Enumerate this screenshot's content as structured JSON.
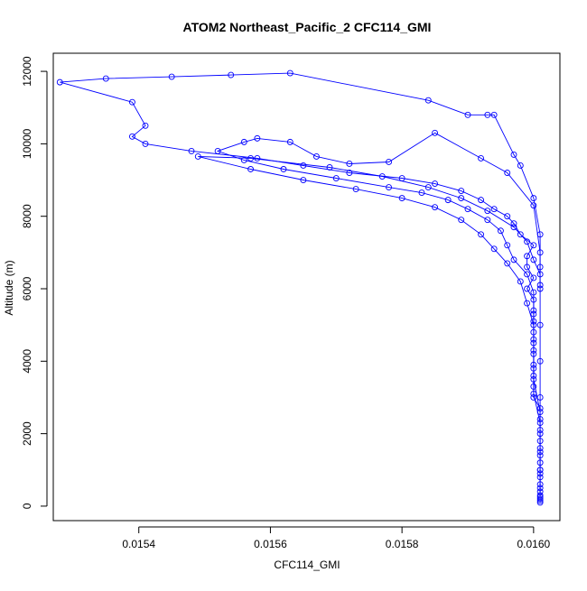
{
  "chart_data": {
    "type": "scatter",
    "title": "ATOM2 Northeast_Pacific_2 CFC114_GMI",
    "xlabel": "CFC114_GMI",
    "ylabel": "Altitude (m)",
    "xlim": [
      0.01527,
      0.01604
    ],
    "ylim": [
      -400,
      12500
    ],
    "x_ticks": [
      0.0154,
      0.0156,
      0.0158,
      0.016
    ],
    "x_tick_labels": [
      "0.0154",
      "0.0156",
      "0.0158",
      "0.0160"
    ],
    "y_ticks": [
      0,
      2000,
      4000,
      6000,
      8000,
      10000,
      12000
    ],
    "y_tick_labels": [
      "0",
      "2000",
      "4000",
      "6000",
      "8000",
      "10000",
      "12000"
    ],
    "grid": false,
    "legend": "none",
    "marker": "open-circle",
    "color": "#0000ff",
    "series": [
      {
        "values": [
          [
            0.01601,
            100
          ],
          [
            0.01601,
            200
          ],
          [
            0.01601,
            400
          ],
          [
            0.01601,
            600
          ],
          [
            0.01601,
            900
          ],
          [
            0.01601,
            1200
          ],
          [
            0.01601,
            1500
          ],
          [
            0.01601,
            1800
          ],
          [
            0.01601,
            2100
          ],
          [
            0.01601,
            2400
          ],
          [
            0.01601,
            2700
          ],
          [
            0.016,
            3000
          ],
          [
            0.016,
            3300
          ],
          [
            0.016,
            3600
          ],
          [
            0.016,
            3900
          ],
          [
            0.016,
            4200
          ],
          [
            0.016,
            4500
          ],
          [
            0.016,
            4800
          ],
          [
            0.016,
            5100
          ],
          [
            0.016,
            5400
          ],
          [
            0.016,
            5700
          ],
          [
            0.01599,
            6000
          ],
          [
            0.016,
            6300
          ],
          [
            0.01599,
            6600
          ],
          [
            0.01599,
            6900
          ],
          [
            0.016,
            7200
          ],
          [
            0.01598,
            7500
          ],
          [
            0.01597,
            7800
          ],
          [
            0.01596,
            8000
          ],
          [
            0.01594,
            8200
          ],
          [
            0.01592,
            8450
          ],
          [
            0.01589,
            8700
          ],
          [
            0.01585,
            8900
          ],
          [
            0.0158,
            9050
          ],
          [
            0.01572,
            9200
          ],
          [
            0.01565,
            9400
          ],
          [
            0.01558,
            9600
          ],
          [
            0.01548,
            9800
          ],
          [
            0.01541,
            10000
          ],
          [
            0.01539,
            10200
          ],
          [
            0.01541,
            10500
          ],
          [
            0.01539,
            11150
          ],
          [
            0.01528,
            11700
          ],
          [
            0.01535,
            11800
          ],
          [
            0.01545,
            11850
          ],
          [
            0.01554,
            11900
          ],
          [
            0.01563,
            11950
          ],
          [
            0.01584,
            11200
          ],
          [
            0.0159,
            10800
          ],
          [
            0.01593,
            10800
          ],
          [
            0.01594,
            10800
          ],
          [
            0.01597,
            9700
          ],
          [
            0.01598,
            9400
          ],
          [
            0.016,
            8500
          ],
          [
            0.01601,
            7500
          ],
          [
            0.01601,
            6600
          ],
          [
            0.01601,
            6000
          ],
          [
            0.01601,
            5000
          ],
          [
            0.01601,
            4000
          ],
          [
            0.01601,
            3000
          ],
          [
            0.01601,
            2000
          ],
          [
            0.01601,
            1000
          ],
          [
            0.01601,
            300
          ]
        ]
      },
      {
        "values": [
          [
            0.01601,
            150
          ],
          [
            0.01601,
            500
          ],
          [
            0.01601,
            1000
          ],
          [
            0.01601,
            1600
          ],
          [
            0.01601,
            2300
          ],
          [
            0.016,
            3100
          ],
          [
            0.016,
            3800
          ],
          [
            0.016,
            4600
          ],
          [
            0.016,
            5300
          ],
          [
            0.016,
            5900
          ],
          [
            0.01599,
            6400
          ],
          [
            0.01597,
            6800
          ],
          [
            0.01596,
            7200
          ],
          [
            0.01595,
            7600
          ],
          [
            0.01593,
            7900
          ],
          [
            0.0159,
            8200
          ],
          [
            0.01587,
            8450
          ],
          [
            0.01583,
            8650
          ],
          [
            0.01578,
            8800
          ],
          [
            0.0157,
            9050
          ],
          [
            0.01562,
            9300
          ],
          [
            0.01556,
            9550
          ],
          [
            0.01552,
            9800
          ],
          [
            0.01556,
            10050
          ],
          [
            0.01558,
            10150
          ],
          [
            0.01563,
            10050
          ],
          [
            0.01567,
            9650
          ],
          [
            0.01572,
            9450
          ],
          [
            0.01578,
            9500
          ],
          [
            0.01585,
            10300
          ],
          [
            0.01592,
            9600
          ],
          [
            0.01596,
            9200
          ],
          [
            0.016,
            8300
          ],
          [
            0.01601,
            7000
          ],
          [
            0.01601,
            6100
          ]
        ]
      },
      {
        "values": [
          [
            0.01601,
            250
          ],
          [
            0.01601,
            800
          ],
          [
            0.01601,
            1400
          ],
          [
            0.01601,
            2600
          ],
          [
            0.016,
            3500
          ],
          [
            0.016,
            4300
          ],
          [
            0.016,
            5000
          ],
          [
            0.01599,
            5600
          ],
          [
            0.01598,
            6200
          ],
          [
            0.01596,
            6700
          ],
          [
            0.01594,
            7100
          ],
          [
            0.01592,
            7500
          ],
          [
            0.01589,
            7900
          ],
          [
            0.01585,
            8250
          ],
          [
            0.0158,
            8500
          ],
          [
            0.01573,
            8750
          ],
          [
            0.01565,
            9000
          ],
          [
            0.01557,
            9300
          ],
          [
            0.01549,
            9650
          ],
          [
            0.01557,
            9600
          ],
          [
            0.01569,
            9350
          ],
          [
            0.01577,
            9100
          ],
          [
            0.01584,
            8800
          ],
          [
            0.01589,
            8500
          ],
          [
            0.01593,
            8150
          ],
          [
            0.01597,
            7700
          ],
          [
            0.01599,
            7300
          ],
          [
            0.016,
            6800
          ],
          [
            0.01601,
            6400
          ]
        ]
      }
    ]
  }
}
